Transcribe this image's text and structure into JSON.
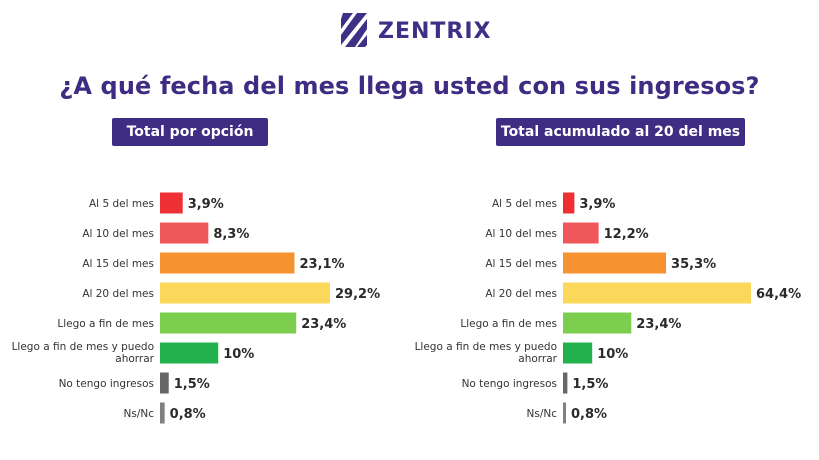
{
  "brand": {
    "name": "ZENTRIX",
    "icon": "zentrix-stripes-logo",
    "color": "#3f2f85"
  },
  "question": "¿A qué fecha del mes llega usted con sus ingresos?",
  "colors": {
    "al5": "#ee2f33",
    "al10": "#f0575a",
    "al15": "#f6922f",
    "al20": "#fcd85a",
    "fin": "#7ccf4e",
    "ahorrar": "#22b14c",
    "sin": "#666666",
    "ns": "#808080"
  },
  "chart_data": [
    {
      "type": "bar",
      "orientation": "horizontal",
      "title": "Total por opción",
      "categories": [
        [
          "Al 5 del mes"
        ],
        [
          "Al 10 del mes"
        ],
        [
          "Al 15 del mes"
        ],
        [
          "Al 20 del mes"
        ],
        [
          "Llego a fin de mes"
        ],
        [
          "Llego a fin de mes y puedo",
          "ahorrar"
        ],
        [
          "No tengo ingresos"
        ],
        [
          "Ns/Nc"
        ]
      ],
      "values": [
        3.9,
        8.3,
        23.1,
        29.2,
        23.4,
        10,
        1.5,
        0.8
      ],
      "value_labels": [
        "3,9%",
        "8,3%",
        "23,1%",
        "29,2%",
        "23,4%",
        "10%",
        "1,5%",
        "0,8%"
      ],
      "bar_colors": [
        "#ee2f33",
        "#f0575a",
        "#f6922f",
        "#fcd85a",
        "#7ccf4e",
        "#22b14c",
        "#666666",
        "#808080"
      ],
      "unit": "%",
      "grid": false
    },
    {
      "type": "bar",
      "orientation": "horizontal",
      "title": "Total acumulado al 20 del mes",
      "categories": [
        [
          "Al 5 del mes"
        ],
        [
          "Al 10 del mes"
        ],
        [
          "Al 15 del mes"
        ],
        [
          "Al 20 del mes"
        ],
        [
          "Llego a fin de mes"
        ],
        [
          "Llego a fin de mes y puedo",
          "ahorrar"
        ],
        [
          "No tengo ingresos"
        ],
        [
          "Ns/Nc"
        ]
      ],
      "values": [
        3.9,
        12.2,
        35.3,
        64.4,
        23.4,
        10,
        1.5,
        0.8
      ],
      "value_labels": [
        "3,9%",
        "12,2%",
        "35,3%",
        "64,4%",
        "23,4%",
        "10%",
        "1,5%",
        "0,8%"
      ],
      "bar_colors": [
        "#ee2f33",
        "#f0575a",
        "#f6922f",
        "#fcd85a",
        "#7ccf4e",
        "#22b14c",
        "#666666",
        "#808080"
      ],
      "unit": "%",
      "grid": false
    }
  ]
}
